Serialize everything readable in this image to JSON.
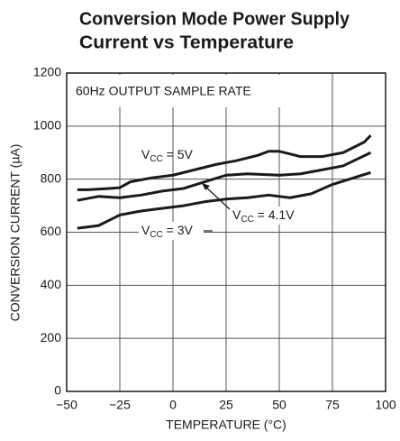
{
  "chart_data": {
    "type": "line",
    "title": [
      "Conversion Mode Power Supply",
      "Current vs Temperature"
    ],
    "annotation": "60Hz OUTPUT SAMPLE RATE",
    "x_label": "TEMPERATURE (°C)",
    "y_label": "CONVERSION CURRENT (µA)",
    "xlim": [
      -50,
      100
    ],
    "xticks": [
      {
        "value": -50,
        "label": "−50"
      },
      {
        "value": -25,
        "label": "−25"
      },
      0,
      25,
      50,
      75,
      100
    ],
    "ylim": [
      0,
      1200
    ],
    "yticks": [
      0,
      200,
      400,
      600,
      800,
      1000,
      1200
    ],
    "grid": true,
    "series": [
      {
        "label": {
          "base": "V",
          "sub": "CC",
          "rest": " = 5V"
        },
        "color": "#1a1a1a",
        "x": [
          -45,
          -40,
          -30,
          -25,
          -20,
          -10,
          0,
          10,
          20,
          30,
          40,
          45,
          50,
          55,
          60,
          70,
          80,
          90,
          93
        ],
        "values": [
          760,
          760,
          765,
          768,
          790,
          805,
          815,
          835,
          855,
          870,
          890,
          905,
          905,
          895,
          885,
          885,
          900,
          940,
          965
        ]
      },
      {
        "label": {
          "base": "V",
          "sub": "CC",
          "rest": " = 4.1V"
        },
        "color": "#1a1a1a",
        "x": [
          -45,
          -35,
          -25,
          -15,
          -5,
          5,
          15,
          25,
          35,
          50,
          60,
          70,
          80,
          93
        ],
        "values": [
          720,
          735,
          730,
          740,
          755,
          765,
          790,
          815,
          820,
          815,
          820,
          835,
          850,
          900
        ]
      },
      {
        "label": {
          "base": "V",
          "sub": "CC",
          "rest": " = 3V"
        },
        "color": "#1a1a1a",
        "x": [
          -45,
          -35,
          -25,
          -15,
          -5,
          5,
          15,
          25,
          35,
          45,
          55,
          65,
          75,
          85,
          93
        ],
        "values": [
          615,
          625,
          665,
          680,
          690,
          700,
          715,
          725,
          730,
          740,
          730,
          745,
          780,
          805,
          825
        ]
      }
    ]
  }
}
